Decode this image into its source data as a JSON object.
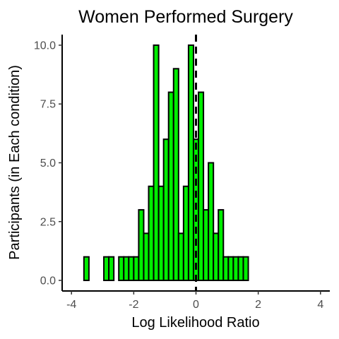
{
  "chart_data": {
    "type": "bar",
    "title": "Women Performed Surgery",
    "xlabel": "Log Likelihood Ratio",
    "ylabel": "Participants (in Each condition)",
    "xlim": [
      -4.3,
      4.3
    ],
    "ylim": [
      -0.45,
      10.45
    ],
    "x_ticks": [
      -4,
      -2,
      0,
      2,
      4
    ],
    "x_tick_labels": [
      "-4",
      "-2",
      "0",
      "2",
      "4"
    ],
    "y_ticks": [
      0,
      2.5,
      5,
      7.5,
      10
    ],
    "y_tick_labels": [
      "0.0",
      "2.5",
      "5.0",
      "7.5",
      "10.0"
    ],
    "bin_width": 0.16,
    "bin_start": -3.6,
    "values": [
      1,
      0,
      0,
      0,
      1,
      1,
      0,
      1,
      1,
      1,
      1,
      3,
      2,
      4,
      10,
      4,
      6,
      8,
      9,
      2,
      4,
      10,
      6,
      8,
      3,
      5,
      2,
      3,
      1,
      1,
      1,
      1,
      1
    ],
    "fill_color": "#00ee00",
    "stroke_color": "#000000",
    "reference_line": {
      "x": 0,
      "style": "dashed",
      "color": "#000000"
    },
    "grid": false
  }
}
